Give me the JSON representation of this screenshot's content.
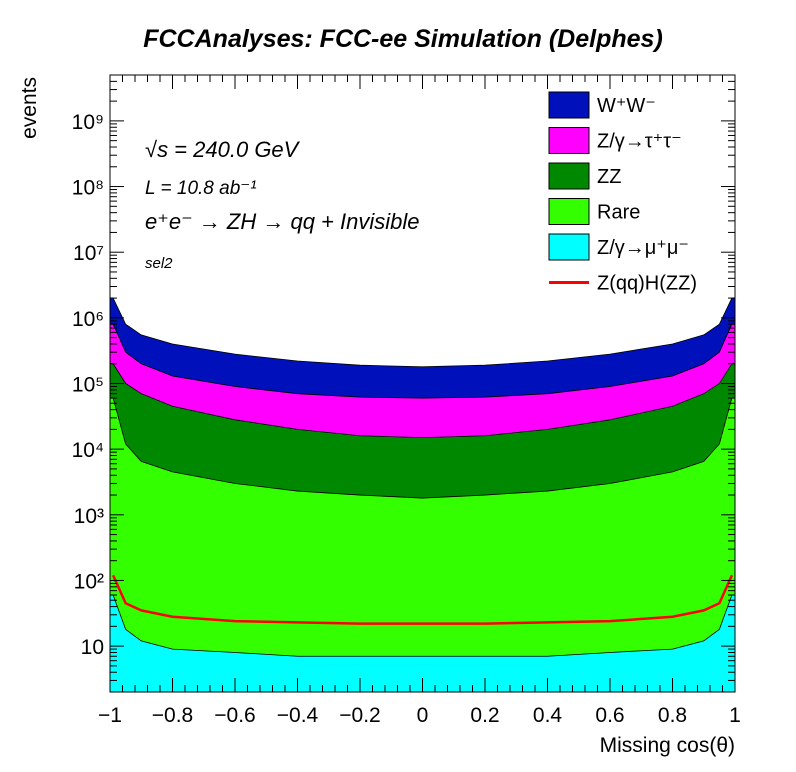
{
  "title": "FCCAnalyses: FCC-ee Simulation (Delphes)",
  "annotations": {
    "energy_label": "√s = 240.0 GeV",
    "lumi_label": "L = 10.8 ab⁻¹",
    "process_label": "e⁺e⁻ → ZH → qq + Invisible",
    "selection_label": "sel2"
  },
  "chart_data": {
    "type": "area",
    "xlabel": "Missing cos(θ)",
    "ylabel": "events",
    "xlim": [
      -1,
      1
    ],
    "ylim": [
      2,
      5000000000
    ],
    "y_scale": "log",
    "stacked": true,
    "grid": false,
    "legend_position": "top-right",
    "x_ticks": [
      "−1",
      "−0.8",
      "−0.6",
      "−0.4",
      "−0.2",
      "0",
      "0.2",
      "0.4",
      "0.6",
      "0.8",
      "1"
    ],
    "y_ticks": [
      "10",
      "10²",
      "10³",
      "10⁴",
      "10⁵",
      "10⁶",
      "10⁷",
      "10⁸",
      "10⁹"
    ],
    "x": [
      -0.99,
      -0.95,
      -0.9,
      -0.8,
      -0.6,
      -0.4,
      -0.2,
      0,
      0.2,
      0.4,
      0.6,
      0.8,
      0.9,
      0.95,
      0.99
    ],
    "series": [
      {
        "name": "Z/γ→μ⁺μ⁻",
        "color": "#00ffff",
        "stack_top": [
          60,
          18,
          12,
          9,
          8,
          7,
          7,
          7,
          7,
          7,
          8,
          9,
          12,
          18,
          60
        ]
      },
      {
        "name": "Rare",
        "color": "#33ff00",
        "stack_top": [
          60000,
          12000,
          6500,
          4500,
          3000,
          2300,
          2000,
          1800,
          2000,
          2300,
          3000,
          4500,
          6500,
          12000,
          60000
        ]
      },
      {
        "name": "ZZ",
        "color": "#008800",
        "stack_top": [
          200000,
          100000,
          70000,
          45000,
          28000,
          20000,
          16000,
          15000,
          16000,
          20000,
          28000,
          45000,
          70000,
          100000,
          200000
        ]
      },
      {
        "name": "Z/γ→τ⁺τ⁻",
        "color": "#ff00ff",
        "stack_top": [
          800000,
          300000,
          200000,
          130000,
          90000,
          70000,
          62000,
          60000,
          62000,
          70000,
          90000,
          130000,
          200000,
          300000,
          800000
        ]
      },
      {
        "name": "W⁺W⁻",
        "color": "#0011bb",
        "stack_top": [
          2000000,
          800000,
          550000,
          400000,
          280000,
          220000,
          190000,
          180000,
          190000,
          220000,
          280000,
          400000,
          550000,
          800000,
          2000000
        ]
      }
    ],
    "signal": {
      "name": "Z(qq)H(ZZ)",
      "color": "#ff0000",
      "values": [
        120,
        45,
        35,
        28,
        24,
        23,
        22,
        22,
        22,
        23,
        24,
        28,
        35,
        45,
        120
      ]
    }
  }
}
